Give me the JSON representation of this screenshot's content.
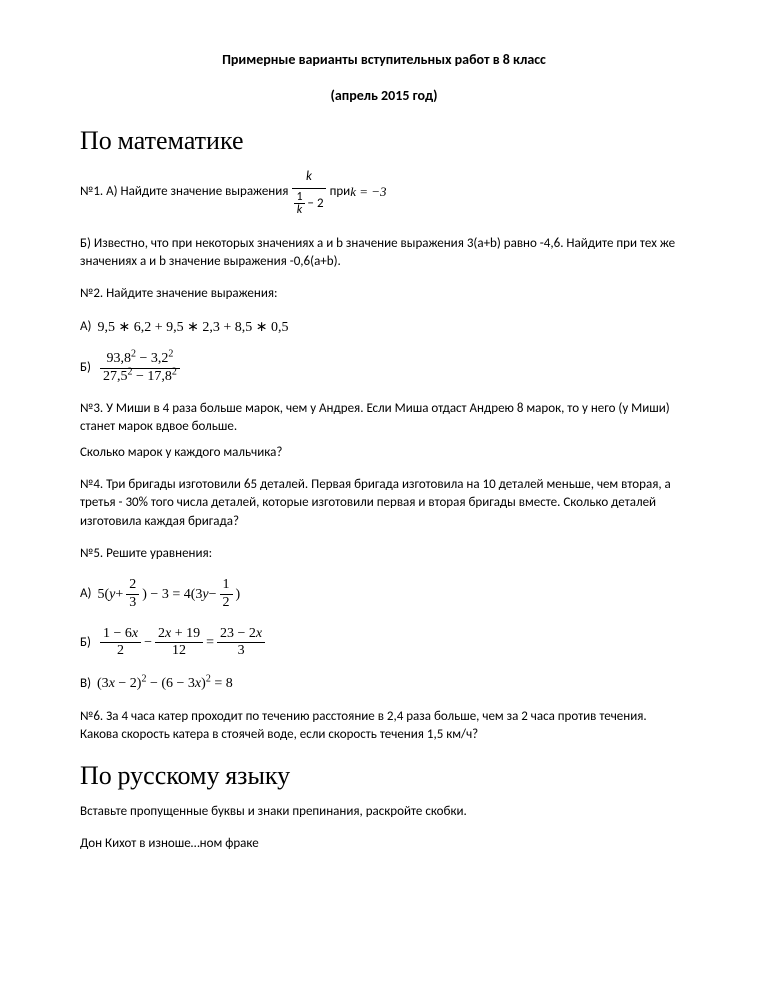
{
  "header": {
    "title": "Примерные варианты вступительных работ  в 8 класс",
    "subtitle": "(апрель 2015 год)"
  },
  "math": {
    "heading": "По математике",
    "p1_prefix": "№1. А) Найдите значение выражения ",
    "p1_k": "k",
    "p1_one": "1",
    "p1_minus2": "− 2",
    "p1_pri": " при ",
    "p1_kval": "k = −3",
    "p1b": "Б) Известно, что при некоторых значениях a и b значение выражения  3(a+b)   равно  -4,6.  Найдите при тех же значениях a и b значение выражения  -0,6(a+b).",
    "p2_intro": "№2. Найдите значение выражения:",
    "p2a_label": "А)",
    "p2a_expr": "9,5 ∗ 6,2 + 9,5 ∗ 2,3 + 8,5 ∗ 0,5",
    "p2b_label": "Б)",
    "p2b_num": "93,8² − 3,2²",
    "p2b_den": "27,5² − 17,8²",
    "p3a": "№3. У Миши в 4 раза больше марок, чем у Андрея. Если Миша отдаст Андрею 8 марок, то у него (у Миши) станет марок вдвое больше.",
    "p3b": "Сколько марок у каждого мальчика?",
    "p4": "№4. Три бригады изготовили 65 деталей. Первая бригада изготовила на 10 деталей меньше, чем вторая, а третья - 30% того числа деталей, которые изготовили первая и вторая бригады вместе. Сколько деталей изготовила каждая бригада?",
    "p5_intro": "№5. Решите уравнения:",
    "p5a_label": "А)",
    "p5a_5": "5(",
    "p5a_y": "y",
    "p5a_plus": " + ",
    "p5a_23n": "2",
    "p5a_23d": "3",
    "p5a_close1": ") − 3 = 4(3",
    "p5a_y2": "y",
    "p5a_minus": " − ",
    "p5a_12n": "1",
    "p5a_12d": "2",
    "p5a_close2": ")",
    "p5b_label": "Б)",
    "p5b_f1n": "1 − 6x",
    "p5b_f1d": "2",
    "p5b_minus": " − ",
    "p5b_f2n": "2x + 19",
    "p5b_f2d": "12",
    "p5b_eq": " = ",
    "p5b_f3n": "23 − 2x",
    "p5b_f3d": "3",
    "p5c_label": "В)",
    "p5c_expr": "(3x − 2)² − (6 − 3x)² = 8",
    "p6": "№6. За 4 часа катер проходит по течению расстояние в 2,4 раза больше, чем за 2 часа против течения. Какова скорость катера в стоячей воде, если скорость течения 1,5 км/ч?"
  },
  "russian": {
    "heading": "По русскому языку",
    "intro": "Вставьте пропущенные буквы и знаки препинания, раскройте скобки.",
    "text1": "Дон Кихот в изноше…ном фраке"
  }
}
